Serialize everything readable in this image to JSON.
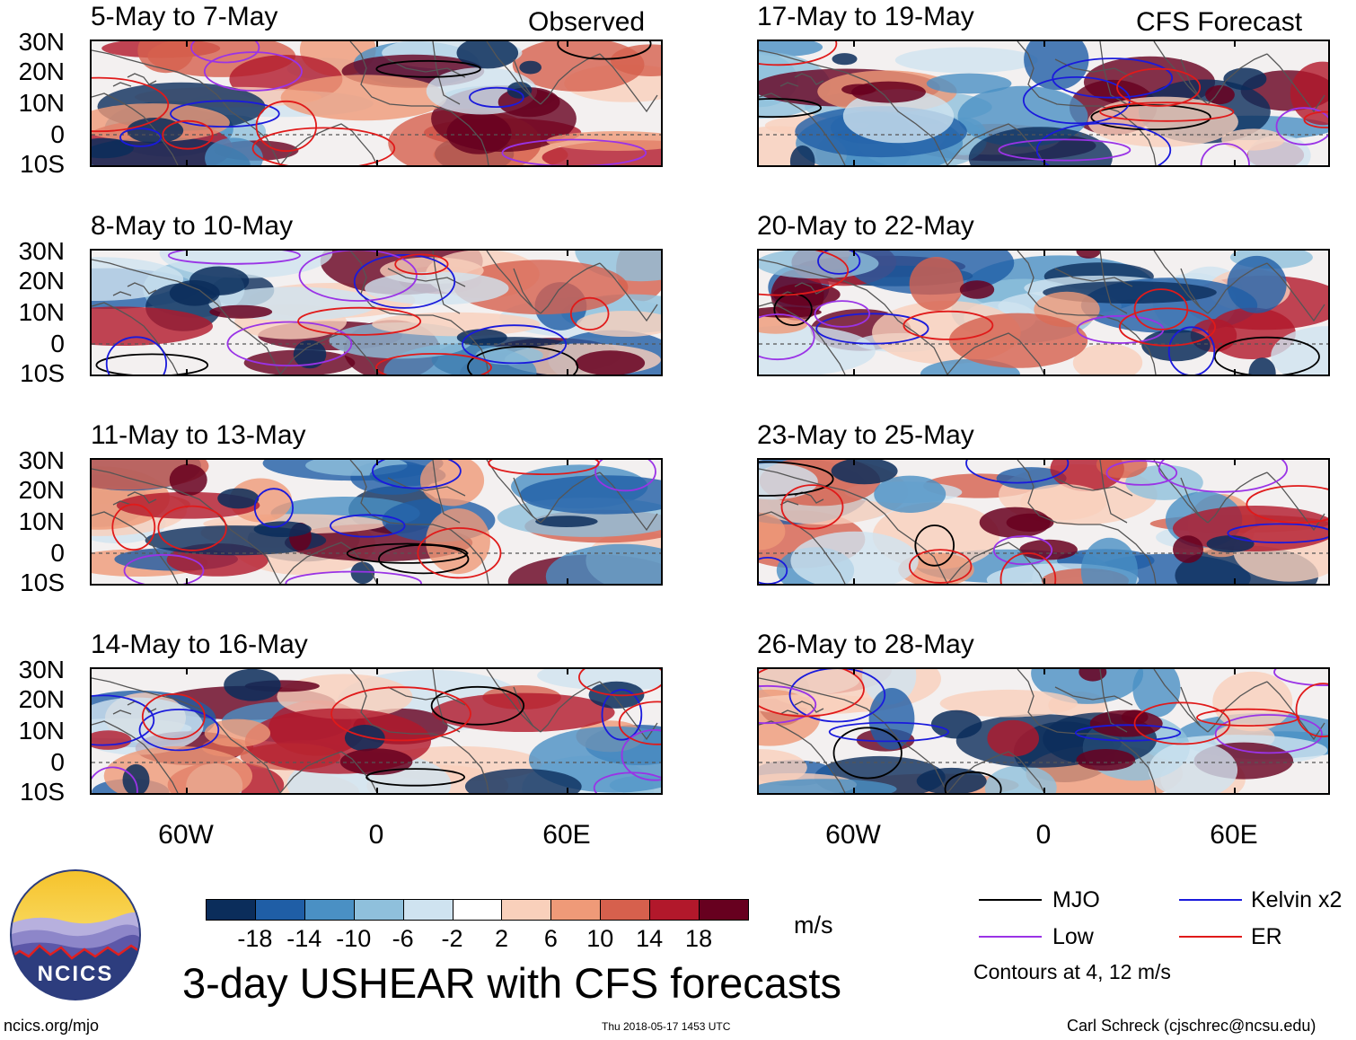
{
  "headers": {
    "observed": "Observed",
    "forecast": "CFS Forecast"
  },
  "panels_left": [
    {
      "title": "5-May to 7-May"
    },
    {
      "title": "8-May to 10-May"
    },
    {
      "title": "11-May to 13-May"
    },
    {
      "title": "14-May to 16-May"
    }
  ],
  "panels_right": [
    {
      "title": "17-May to 19-May"
    },
    {
      "title": "20-May to 22-May"
    },
    {
      "title": "23-May to 25-May"
    },
    {
      "title": "26-May to 28-May"
    }
  ],
  "lat_labels": [
    "30N",
    "20N",
    "10N",
    "0",
    "10S"
  ],
  "lon_labels": [
    "60W",
    "0",
    "60E"
  ],
  "colorbar": {
    "labels": [
      "-18",
      "-14",
      "-10",
      "-6",
      "-2",
      "2",
      "6",
      "10",
      "14",
      "18"
    ],
    "colors": [
      "#0b2d5b",
      "#1f5ea6",
      "#4a90c4",
      "#8fc0dc",
      "#cfe3f0",
      "#ffffff",
      "#f9d0bb",
      "#ef9a78",
      "#d6604d",
      "#b2182b",
      "#67001f"
    ],
    "units": "m/s"
  },
  "legend": {
    "mjo": "MJO",
    "kelvin": "Kelvin x2",
    "low": "Low",
    "er": "ER",
    "contours_note": "Contours at 4, 12 m/s",
    "colors": {
      "mjo": "#000000",
      "kelvin": "#1a1adc",
      "low": "#9a33e6",
      "er": "#e01a1a"
    }
  },
  "title": "3-day USHEAR with CFS forecasts",
  "logo_text": "NCICS",
  "footer": {
    "url": "ncics.org/mjo",
    "timestamp": "Thu 2018-05-17 1453 UTC",
    "credit": "Carl Schreck (cjschrec@ncsu.edu)"
  }
}
